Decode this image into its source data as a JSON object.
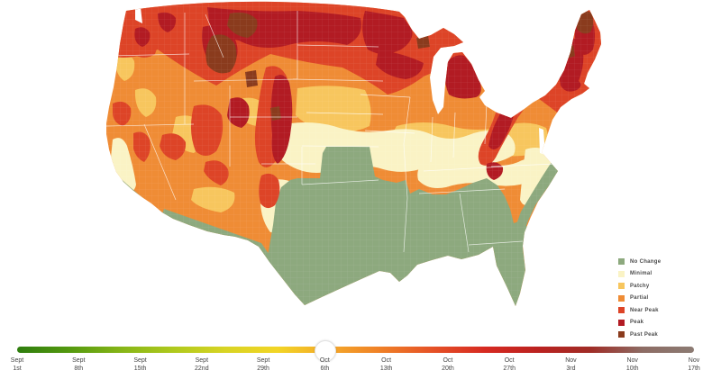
{
  "map": {
    "region": "Continental United States",
    "kind": "county fall foliage choropleth",
    "background_color": "#ffffff",
    "county_border_color": "#ffffff"
  },
  "legend": {
    "items": [
      {
        "key": "no-change",
        "label": "No Change",
        "color": "#8DA97E"
      },
      {
        "key": "minimal",
        "label": "Minimal",
        "color": "#FAF3C5"
      },
      {
        "key": "patchy",
        "label": "Patchy",
        "color": "#F7C65E"
      },
      {
        "key": "partial",
        "label": "Partial",
        "color": "#EF8C35"
      },
      {
        "key": "near-peak",
        "label": "Near Peak",
        "color": "#DD4427"
      },
      {
        "key": "peak",
        "label": "Peak",
        "color": "#B21B23"
      },
      {
        "key": "past-peak",
        "label": "Past Peak",
        "color": "#8A3B1D"
      }
    ]
  },
  "timeline": {
    "selected_index": 5,
    "selected_label": "Oct 6th",
    "gradient": [
      "#2E7D0E",
      "#54990F",
      "#86B517",
      "#AFC91D",
      "#D8D424",
      "#F2D526",
      "#F4A82A",
      "#EF7F27",
      "#E55127",
      "#D62A21",
      "#BB2220",
      "#A02C26",
      "#8D6C64",
      "#8C7B73"
    ],
    "ticks": [
      {
        "month": "Sept",
        "day": "1st"
      },
      {
        "month": "Sept",
        "day": "8th"
      },
      {
        "month": "Sept",
        "day": "15th"
      },
      {
        "month": "Sept",
        "day": "22nd"
      },
      {
        "month": "Sept",
        "day": "29th"
      },
      {
        "month": "Oct",
        "day": "6th"
      },
      {
        "month": "Oct",
        "day": "13th"
      },
      {
        "month": "Oct",
        "day": "20th"
      },
      {
        "month": "Oct",
        "day": "27th"
      },
      {
        "month": "Nov",
        "day": "3rd"
      },
      {
        "month": "Nov",
        "day": "10th"
      },
      {
        "month": "Nov",
        "day": "17th"
      }
    ]
  }
}
